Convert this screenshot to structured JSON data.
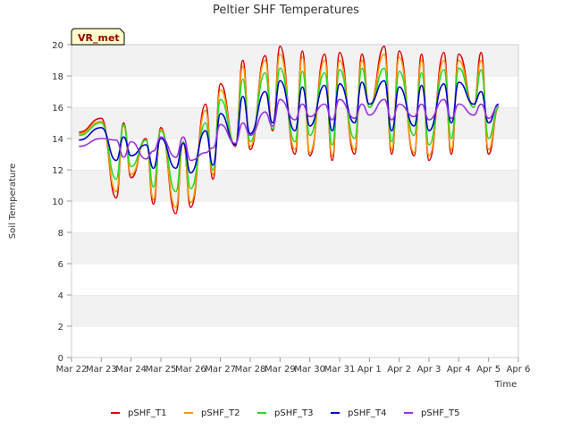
{
  "chart_data": {
    "type": "line",
    "title": "Peltier SHF Temperatures",
    "xlabel": "Time",
    "ylabel": "Soil Temperature",
    "badge": "VR_met",
    "ylim": [
      0,
      20
    ],
    "yticks": [
      0,
      2,
      4,
      6,
      8,
      10,
      12,
      14,
      16,
      18,
      20
    ],
    "xlim": [
      "Mar 22",
      "Apr 6"
    ],
    "xtick_labels": [
      "Mar 22",
      "Mar 23",
      "Mar 24",
      "Mar 25",
      "Mar 26",
      "Mar 27",
      "Mar 28",
      "Mar 29",
      "Mar 30",
      "Mar 31",
      "Apr 1",
      "Apr 2",
      "Apr 3",
      "Apr 4",
      "Apr 5",
      "Apr 6"
    ],
    "grid": "horizontal bands",
    "legend_position": "bottom",
    "x": [
      "Mar 22 06:00",
      "Mar 23 00:00",
      "Mar 23 12:00",
      "Mar 23 18:00",
      "Mar 24 00:00",
      "Mar 24 12:00",
      "Mar 24 18:00",
      "Mar 25 00:00",
      "Mar 25 12:00",
      "Mar 25 18:00",
      "Mar 26 00:00",
      "Mar 26 12:00",
      "Mar 26 18:00",
      "Mar 27 00:00",
      "Mar 27 12:00",
      "Mar 27 18:00",
      "Mar 28 00:00",
      "Mar 28 12:00",
      "Mar 28 18:00",
      "Mar 29 00:00",
      "Mar 29 12:00",
      "Mar 29 18:00",
      "Mar 30 00:00",
      "Mar 30 12:00",
      "Mar 30 18:00",
      "Mar 31 00:00",
      "Mar 31 12:00",
      "Mar 31 18:00",
      "Apr 1 00:00",
      "Apr 1 12:00",
      "Apr 1 18:00",
      "Apr 2 00:00",
      "Apr 2 12:00",
      "Apr 2 18:00",
      "Apr 3 00:00",
      "Apr 3 12:00",
      "Apr 3 18:00",
      "Apr 4 00:00",
      "Apr 4 12:00",
      "Apr 4 18:00",
      "Apr 5 00:00",
      "Apr 5 08:00"
    ],
    "series": [
      {
        "name": "pSHF_T1",
        "color": "#dd0000",
        "values": [
          14.4,
          15.3,
          10.2,
          15.0,
          11.5,
          14.0,
          9.8,
          14.7,
          9.2,
          13.8,
          9.6,
          16.2,
          11.4,
          17.5,
          13.5,
          19.0,
          13.3,
          19.3,
          14.5,
          19.9,
          13.0,
          19.6,
          12.9,
          19.4,
          12.6,
          19.5,
          13.0,
          19.4,
          16.0,
          19.9,
          13.0,
          19.6,
          12.9,
          19.4,
          12.6,
          19.5,
          13.0,
          19.4,
          16.0,
          19.5,
          13.0,
          16.0
        ]
      },
      {
        "name": "pSHF_T2",
        "color": "#ff9900",
        "values": [
          14.3,
          15.1,
          10.6,
          14.8,
          11.7,
          13.9,
          10.1,
          14.6,
          9.6,
          13.7,
          9.9,
          15.8,
          11.7,
          17.1,
          13.6,
          18.6,
          13.5,
          19.0,
          14.6,
          19.4,
          13.3,
          19.2,
          13.1,
          19.0,
          12.9,
          19.0,
          13.3,
          19.0,
          16.0,
          19.4,
          13.3,
          19.2,
          13.1,
          19.0,
          12.9,
          19.0,
          13.3,
          19.0,
          16.0,
          19.0,
          13.3,
          16.0
        ]
      },
      {
        "name": "pSHF_T3",
        "color": "#22dd22",
        "values": [
          14.2,
          15.0,
          11.4,
          14.9,
          12.2,
          13.9,
          10.9,
          14.5,
          10.6,
          13.8,
          10.8,
          15.0,
          12.0,
          16.5,
          13.6,
          17.8,
          13.8,
          18.2,
          14.6,
          18.5,
          13.8,
          18.3,
          14.2,
          18.2,
          13.6,
          18.4,
          14.0,
          18.5,
          16.0,
          18.5,
          13.8,
          18.3,
          14.2,
          18.2,
          13.6,
          18.4,
          14.0,
          18.5,
          16.0,
          18.4,
          14.0,
          16.0
        ]
      },
      {
        "name": "pSHF_T4",
        "color": "#0000cc",
        "values": [
          13.9,
          14.7,
          12.6,
          14.1,
          12.9,
          13.6,
          12.1,
          14.0,
          12.1,
          13.7,
          11.8,
          14.5,
          12.3,
          15.6,
          13.6,
          16.7,
          14.3,
          17.0,
          15.0,
          17.7,
          14.5,
          17.3,
          14.8,
          17.4,
          14.5,
          17.5,
          15.0,
          17.6,
          16.2,
          17.7,
          14.5,
          17.3,
          14.8,
          17.4,
          14.5,
          17.5,
          15.0,
          17.6,
          16.2,
          17.0,
          15.0,
          16.2
        ]
      },
      {
        "name": "pSHF_T5",
        "color": "#9933dd",
        "values": [
          13.5,
          14.0,
          13.9,
          12.8,
          13.8,
          12.7,
          13.2,
          14.1,
          12.8,
          14.1,
          12.6,
          13.1,
          13.4,
          14.9,
          13.7,
          15.0,
          14.2,
          15.7,
          14.8,
          16.5,
          15.2,
          16.2,
          15.4,
          16.2,
          15.2,
          16.5,
          15.3,
          16.2,
          15.5,
          16.5,
          15.2,
          16.2,
          15.4,
          16.2,
          15.2,
          16.5,
          15.3,
          16.2,
          15.5,
          16.2,
          15.3,
          16.1
        ]
      }
    ]
  }
}
